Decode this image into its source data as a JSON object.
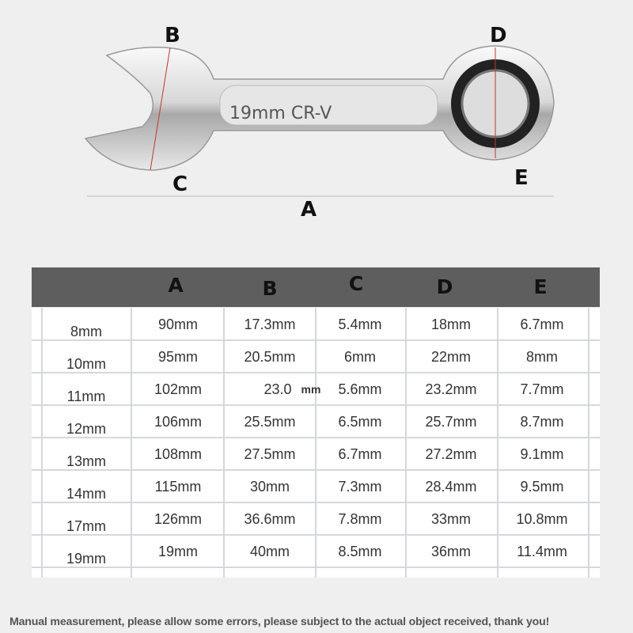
{
  "product": {
    "engraving": "19mm CR-V",
    "dimension_labels": {
      "A": "A",
      "B": "B",
      "C": "C",
      "D": "D",
      "E": "E"
    }
  },
  "table": {
    "headers": [
      "",
      "A",
      "B",
      "C",
      "D",
      "E"
    ],
    "rows": [
      [
        "8mm",
        "90mm",
        "17.3mm",
        "5.4mm",
        "18mm",
        "6.7mm"
      ],
      [
        "10mm",
        "95mm",
        "20.5mm",
        "6mm",
        "22mm",
        "8mm"
      ],
      [
        "11mm",
        "102mm",
        "23.0",
        "5.6mm",
        "23.2mm",
        "7.7mm"
      ],
      [
        "12mm",
        "106mm",
        "25.5mm",
        "6.5mm",
        "25.7mm",
        "8.7mm"
      ],
      [
        "13mm",
        "108mm",
        "27.5mm",
        "6.7mm",
        "27.2mm",
        "9.1mm"
      ],
      [
        "14mm",
        "115mm",
        "30mm",
        "7.3mm",
        "28.4mm",
        "9.5mm"
      ],
      [
        "17mm",
        "126mm",
        "36.6mm",
        "7.8mm",
        "33mm",
        "10.8mm"
      ],
      [
        "19mm",
        "19mm",
        "40mm",
        "8.5mm",
        "36mm",
        "11.4mm"
      ]
    ],
    "row3_b_unit": "mm"
  },
  "footer_note": "Manual measurement, please allow some errors, please subject to the actual object received, thank you!",
  "colors": {
    "header_bg": "#5e5e5e",
    "grid": "#d4d8de",
    "measure_line": "#c0392b"
  }
}
